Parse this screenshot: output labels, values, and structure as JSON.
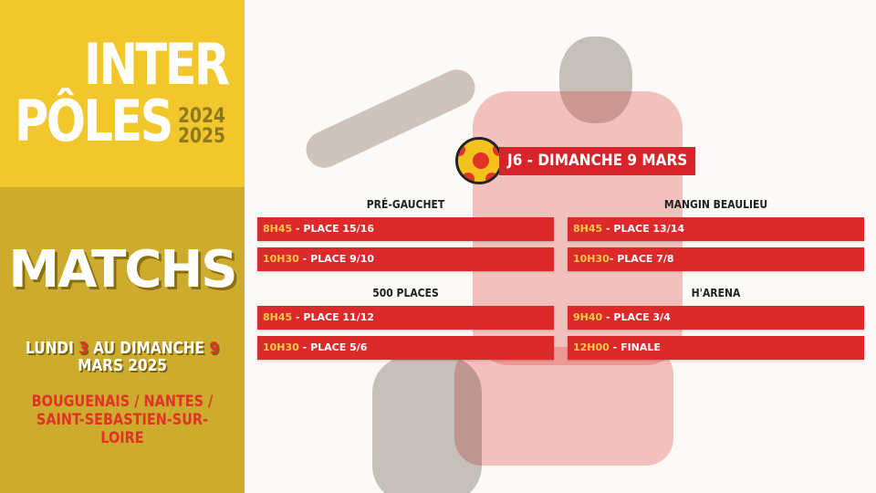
{
  "brand": {
    "line1": "INTER",
    "line2": "PÔLES",
    "year1": "2024",
    "year2": "2025"
  },
  "left": {
    "title": "MATCHS",
    "dates_pre": "LUNDI ",
    "day_start": "3",
    "dates_mid": " AU DIMANCHE ",
    "day_end": "9",
    "dates_line2": "MARS 2025",
    "cities_line1": "BOUGUENAIS / NANTES /",
    "cities_line2": "SAINT-SEBASTIEN-SUR-LOIRE"
  },
  "header": {
    "label": "J6 - DIMANCHE 9 MARS",
    "icon": "handball-icon"
  },
  "colors": {
    "yellow": "#f2c72c",
    "olive": "#cdab2c",
    "red": "#dc2a2a"
  },
  "venues": [
    {
      "name": "PRÉ-GAUCHET",
      "matches": [
        {
          "time": "8H45",
          "sep": " - ",
          "label": "PLACE 15/16"
        },
        {
          "time": "10H30",
          "sep": " - ",
          "label": "PLACE 9/10"
        }
      ]
    },
    {
      "name": "MANGIN BEAULIEU",
      "matches": [
        {
          "time": "8H45",
          "sep": " - ",
          "label": "PLACE 13/14"
        },
        {
          "time": "10H30",
          "sep": "- ",
          "label": "PLACE 7/8"
        }
      ]
    },
    {
      "name": "500 PLACES",
      "matches": [
        {
          "time": "8H45",
          "sep": " - ",
          "label": "PLACE 11/12"
        },
        {
          "time": "10H30",
          "sep": " - ",
          "label": "PLACE 5/6"
        }
      ]
    },
    {
      "name": "H'ARENA",
      "matches": [
        {
          "time": "9H40",
          "sep": " - ",
          "label": "PLACE 3/4"
        },
        {
          "time": "12H00",
          "sep": " - ",
          "label": "FINALE"
        }
      ]
    }
  ]
}
